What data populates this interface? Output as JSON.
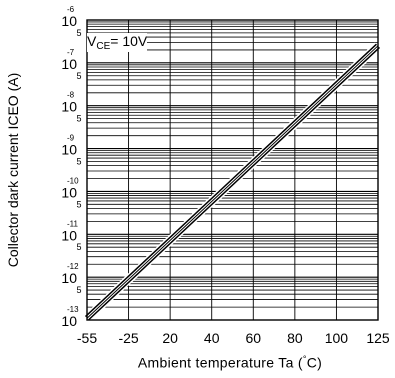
{
  "chart_data": {
    "type": "line",
    "xlabel_prefix": "Ambient temperature Ta (",
    "xlabel_degree": "°",
    "xlabel_suffix": "C)",
    "ylabel": "Collector dark current ICEO (A)",
    "annotation": {
      "v": "V",
      "sub": "CE",
      "rest": "= 10V"
    },
    "x_ticks": [
      "-55",
      "-25",
      "20",
      "40",
      "60",
      "80",
      "100",
      "125"
    ],
    "y_decade_labels": [
      {
        "base": "10",
        "exp": "-13"
      },
      {
        "base": "10",
        "exp": "-12"
      },
      {
        "base": "10",
        "exp": "-11"
      },
      {
        "base": "10",
        "exp": "-10"
      },
      {
        "base": "10",
        "exp": "-9"
      },
      {
        "base": "10",
        "exp": "-8"
      },
      {
        "base": "10",
        "exp": "-7"
      },
      {
        "base": "10",
        "exp": "-6"
      }
    ],
    "y_mid_labels": [
      "5",
      "5",
      "5",
      "5",
      "5",
      "5",
      "5"
    ],
    "ylim": [
      1e-13,
      1e-06
    ],
    "y_scale": "log",
    "grid": true,
    "series": [
      {
        "values": [
          {
            "x": "-55",
            "y": 1.1e-13
          },
          {
            "x": "125",
            "y": 2.5e-07
          }
        ]
      }
    ]
  }
}
